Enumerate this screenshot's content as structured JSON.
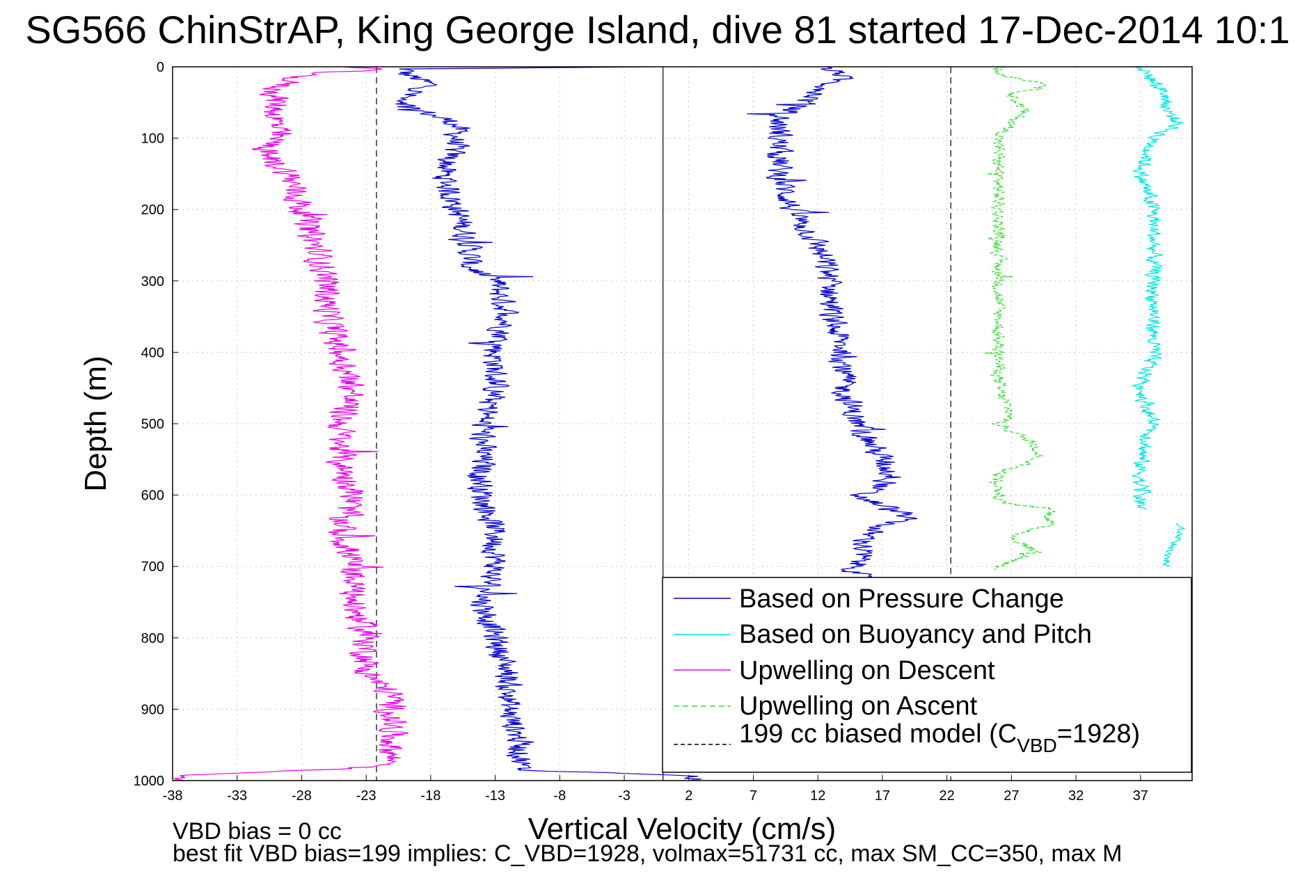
{
  "chart_data": {
    "type": "line",
    "title": "SG566 ChinStrAP, King George Island, dive 81 started 17-Dec-2014 10:1",
    "xlabel": "Vertical Velocity (cm/s)",
    "ylabel": "Depth (m)",
    "xlim": [
      -38,
      41
    ],
    "ylim": [
      1000,
      0
    ],
    "x_ticks": [
      -38,
      -33,
      -28,
      -23,
      -18,
      -13,
      -8,
      -3,
      2,
      7,
      12,
      17,
      22,
      27,
      32,
      37
    ],
    "y_ticks": [
      0,
      100,
      200,
      300,
      400,
      500,
      600,
      700,
      800,
      900,
      1000
    ],
    "x_tick_labels": [
      "-38",
      "-33",
      "-28",
      "-23",
      "-18",
      "-13",
      "-8",
      "-3",
      "2",
      "7",
      "12",
      "17",
      "22",
      "27",
      "32",
      "37"
    ],
    "y_tick_labels": [
      "0",
      "100",
      "200",
      "300",
      "400",
      "500",
      "600",
      "700",
      "800",
      "900",
      "1000"
    ],
    "grid": true,
    "legend_position": "bottom-right",
    "reference_lines": {
      "zero_line_x": 0,
      "model_lines_x": [
        -22.2,
        22.3
      ]
    },
    "notes": [
      "VBD bias = 0 cc",
      "best fit VBD bias=199 implies: C_VBD=1928, volmax=51731 cc, max SM_CC=350, max M"
    ],
    "legend": [
      {
        "label": "Based on Pressure Change",
        "color": "#0000cc",
        "dash": "solid"
      },
      {
        "label": "Based on Buoyancy and Pitch",
        "color": "#00e5e5",
        "dash": "solid"
      },
      {
        "label": "Upwelling on Descent",
        "color": "#e600e6",
        "dash": "solid"
      },
      {
        "label": "Upwelling on Ascent",
        "color": "#33dd33",
        "dash": "dashed"
      },
      {
        "label": "199 cc biased model (C_VBD=1928)",
        "color": "#000000",
        "dash": "dashed"
      }
    ],
    "legend_model_prefix": "199 cc biased model (C",
    "legend_model_sub": "VBD",
    "legend_model_suffix": "=1928)",
    "series": [
      {
        "name": "Based on Pressure Change",
        "color": "#0000cc",
        "dash": "solid",
        "noise": 0.9,
        "depth": [
          0,
          3,
          10,
          25,
          50,
          60,
          80,
          100,
          150,
          200,
          250,
          280,
          300,
          350,
          400,
          450,
          500,
          550,
          600,
          650,
          700,
          750,
          800,
          850,
          900,
          950,
          985,
          993,
          1000
        ],
        "velocity": [
          -1,
          -20,
          -20,
          -18,
          -21,
          -19,
          -16,
          -16,
          -17,
          -16,
          -15,
          -15,
          -13,
          -12,
          -13,
          -13,
          -14,
          -14,
          -14,
          -13,
          -13,
          -14,
          -13,
          -12,
          -12,
          -11,
          -11,
          2,
          3
        ]
      },
      {
        "name": "Based on Pressure Change",
        "color": "#0000cc",
        "dash": "solid",
        "noise": 0.9,
        "depth": [
          0,
          10,
          25,
          50,
          70,
          100,
          150,
          200,
          250,
          300,
          350,
          400,
          450,
          500,
          550,
          580,
          600,
          630,
          650,
          700,
          720
        ],
        "velocity": [
          12,
          14,
          13,
          11,
          9,
          9,
          9,
          10,
          12,
          13,
          13,
          14,
          14,
          15,
          17,
          18,
          15,
          19,
          16,
          15,
          15
        ]
      },
      {
        "name": "Upwelling on Descent",
        "color": "#e600e6",
        "dash": "solid",
        "noise": 1.0,
        "depth": [
          0,
          3,
          10,
          30,
          50,
          100,
          120,
          150,
          200,
          250,
          300,
          350,
          400,
          450,
          500,
          550,
          600,
          650,
          700,
          750,
          800,
          850,
          880,
          900,
          950,
          980,
          993,
          1000
        ],
        "velocity": [
          -25,
          -22,
          -28,
          -30,
          -30,
          -30,
          -31,
          -29,
          -28,
          -27,
          -26,
          -26,
          -25,
          -24,
          -25,
          -25,
          -24,
          -25,
          -24,
          -24,
          -23,
          -23,
          -21,
          -21,
          -21,
          -21,
          -37,
          -37
        ]
      },
      {
        "name": "Upwelling on Ascent",
        "color": "#33dd33",
        "dash": "dashed",
        "noise": 0.45,
        "depth": [
          0,
          10,
          25,
          40,
          60,
          80,
          100,
          150,
          200,
          300,
          330,
          350,
          400,
          450,
          490,
          500,
          530,
          550,
          570,
          600,
          610,
          620,
          640,
          660,
          680,
          700,
          705
        ],
        "velocity": [
          26,
          26,
          30,
          27,
          28,
          27,
          26,
          26,
          26,
          26,
          26,
          26,
          26,
          26,
          27,
          26,
          29,
          29,
          26,
          26,
          26,
          30,
          30,
          27,
          29,
          26,
          26
        ]
      },
      {
        "name": "Based on Buoyancy and Pitch",
        "color": "#00e5e5",
        "dash": "solid",
        "noise": 0.55,
        "depth": [
          0,
          20,
          40,
          60,
          80,
          100,
          150,
          200,
          250,
          300,
          350,
          400,
          450,
          500,
          550,
          600,
          620
        ],
        "velocity": [
          37,
          38,
          39,
          39,
          40,
          38,
          37,
          38,
          38,
          38,
          38,
          38,
          37,
          38,
          37,
          37,
          37
        ]
      },
      {
        "name": "Based on Buoyancy and Pitch",
        "color": "#00e5e5",
        "dash": "solid",
        "noise": 0.3,
        "depth": [
          640,
          660,
          680,
          700
        ],
        "velocity": [
          40,
          40,
          39,
          39
        ]
      }
    ]
  }
}
